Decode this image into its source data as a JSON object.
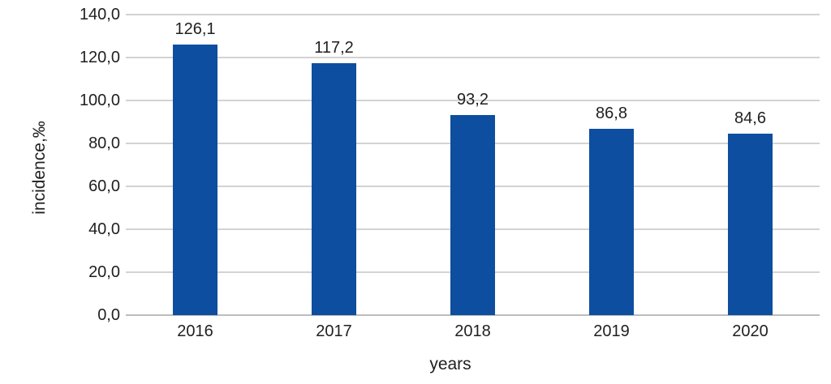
{
  "chart_data": {
    "type": "bar",
    "title": "",
    "categories": [
      "2016",
      "2017",
      "2018",
      "2019",
      "2020"
    ],
    "values": [
      126.1,
      117.2,
      93.2,
      86.8,
      84.6
    ],
    "value_labels": [
      "126,1",
      "117,2",
      "93,2",
      "86,8",
      "84,6"
    ],
    "xlabel": "years",
    "ylabel": "incidence,‰",
    "ylim": [
      0,
      140
    ],
    "ytick_step": 20,
    "ytick_labels": [
      "0,0",
      "20,0",
      "40,0",
      "60,0",
      "80,0",
      "100,0",
      "120,0",
      "140,0"
    ],
    "grid": true,
    "legend": "none",
    "bar_color": "#0d4ea0",
    "gridline_color": "#d3d3d3",
    "axisline_color": "#bdbdbd",
    "text_color": "#1f1f1f",
    "background": "#ffffff"
  }
}
